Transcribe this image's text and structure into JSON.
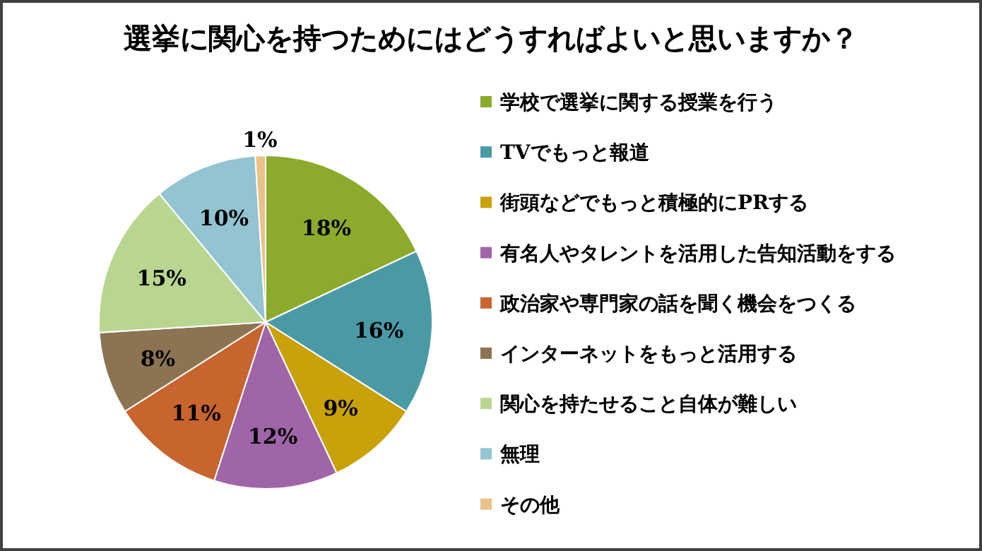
{
  "chart_data": {
    "type": "pie",
    "title": "選挙に関心を持つためにはどうすればよいと思いますか？",
    "categories": [
      "学校で選挙に関する授業を行う",
      "TVでもっと報道",
      "街頭などでもっと積極的にPRする",
      "有名人やタレントを活用した告知活動をする",
      "政治家や専門家の話を聞く機会をつくる",
      "インターネットをもっと活用する",
      "関心を持たせること自体が難しい",
      "無理",
      "その他"
    ],
    "values": [
      18,
      16,
      9,
      12,
      11,
      8,
      15,
      10,
      1
    ],
    "colors": [
      "#8cab2c",
      "#4a9aa6",
      "#c9a10a",
      "#a064a8",
      "#c8642e",
      "#8c7452",
      "#b8d690",
      "#92c4d2",
      "#e8c288"
    ],
    "value_labels": [
      "18%",
      "16%",
      "9%",
      "12%",
      "11%",
      "8%",
      "15%",
      "10%",
      "1%"
    ],
    "legend": "right"
  }
}
